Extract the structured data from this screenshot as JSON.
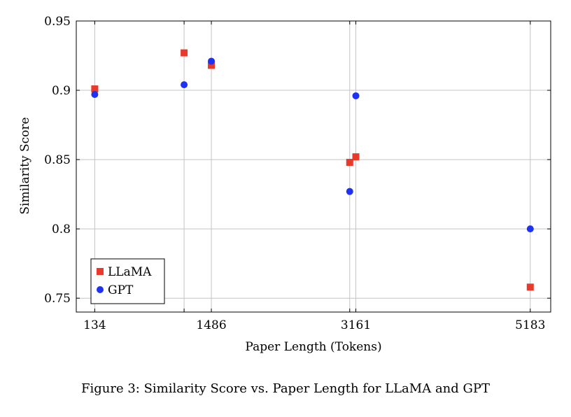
{
  "chart_data": {
    "type": "scatter",
    "title": "",
    "xlabel": "Paper Length (Tokens)",
    "ylabel": "Similarity Score",
    "xlim": [
      -80,
      5420
    ],
    "ylim": [
      0.74,
      0.95
    ],
    "xticks": [
      134,
      1486,
      3161,
      5183
    ],
    "xtick_labels": [
      "134",
      "1486",
      "3161",
      "5183"
    ],
    "yticks": [
      0.75,
      0.8,
      0.85,
      0.9,
      0.95
    ],
    "ytick_labels": [
      "0.75",
      "0.8",
      "0.85",
      "0.9",
      "0.95"
    ],
    "x_gridlines": [
      134,
      1170,
      1486,
      3090,
      3161,
      5183
    ],
    "grid": true,
    "legend_position": "bottom-left",
    "series": [
      {
        "name": "LLaMA",
        "marker": "square",
        "color": "#e8392b",
        "x": [
          134,
          1170,
          1486,
          3090,
          3161,
          5183
        ],
        "y": [
          0.901,
          0.927,
          0.918,
          0.848,
          0.852,
          0.758
        ]
      },
      {
        "name": "GPT",
        "marker": "circle",
        "color": "#1f31f2",
        "x": [
          134,
          1170,
          1486,
          3090,
          3161,
          5183
        ],
        "y": [
          0.897,
          0.904,
          0.921,
          0.827,
          0.896,
          0.8
        ]
      }
    ]
  },
  "caption": "Figure 3: Similarity Score vs. Paper Length for LLaMA and GPT"
}
